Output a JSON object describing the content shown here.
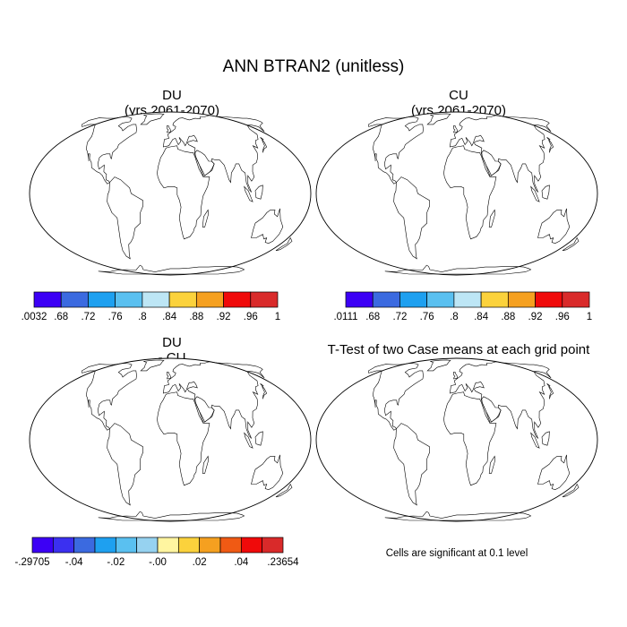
{
  "title": "ANN BTRAN2 (unitless)",
  "panels": [
    {
      "id": "du",
      "title_lines": [
        "DU",
        "(yrs 2061-2070)"
      ]
    },
    {
      "id": "cu",
      "title_lines": [
        "CU",
        "(yrs 2061-2070)"
      ]
    },
    {
      "id": "diff",
      "title_lines": [
        "DU",
        "- CU"
      ]
    },
    {
      "id": "ttest",
      "title_lines": [
        "T-Test of two Case means at each grid point"
      ]
    }
  ],
  "colorbars": [
    {
      "id": "du",
      "colors": [
        "#3c00f5",
        "#3b6ae0",
        "#1ea0f0",
        "#5ac0f0",
        "#bde6f5",
        "#fbd23c",
        "#f5a020",
        "#f00a0a",
        "#d92a2a"
      ],
      "labels": [
        ".0032",
        ".68",
        ".72",
        ".76",
        ".8",
        ".84",
        ".88",
        ".92",
        ".96",
        "1"
      ]
    },
    {
      "id": "cu",
      "colors": [
        "#3c00f5",
        "#3b6ae0",
        "#1ea0f0",
        "#5ac0f0",
        "#bde6f5",
        "#fbd23c",
        "#f5a020",
        "#f00a0a",
        "#d92a2a"
      ],
      "labels": [
        ".0111",
        ".68",
        ".72",
        ".76",
        ".8",
        ".84",
        ".88",
        ".92",
        ".96",
        "1"
      ]
    },
    {
      "id": "diff",
      "colors": [
        "#3c00f5",
        "#3b30f0",
        "#3b6ae0",
        "#1ea0f0",
        "#5ac0f0",
        "#96d2f0",
        "#fff5a0",
        "#fbd23c",
        "#f5a020",
        "#f05a14",
        "#f00a0a",
        "#d92a2a"
      ],
      "labels": [
        "-.29705",
        "-.04",
        "-.02",
        "-.00",
        ".02",
        ".04",
        ".23654"
      ]
    }
  ],
  "note": "Cells are significant at 0.1 level",
  "palette": {
    "land_wet": "#d92a2a",
    "ocean": "#ffffff",
    "outline": "#000000",
    "neutral": "#fff5a0"
  }
}
